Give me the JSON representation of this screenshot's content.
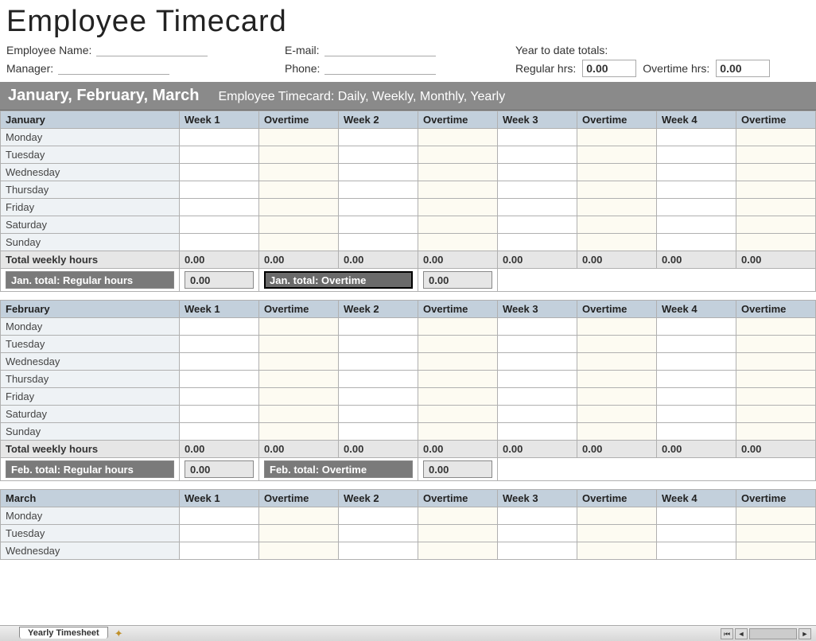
{
  "title": "Employee Timecard",
  "header": {
    "employee_name_label": "Employee Name:",
    "email_label": "E-mail:",
    "manager_label": "Manager:",
    "phone_label": "Phone:",
    "ytd_label": "Year to date totals:",
    "regular_hrs_label": "Regular hrs:",
    "regular_hrs_value": "0.00",
    "overtime_hrs_label": "Overtime hrs:",
    "overtime_hrs_value": "0.00"
  },
  "section": {
    "quarter_title": "January, February, March",
    "subtitle": "Employee Timecard: Daily, Weekly, Monthly, Yearly"
  },
  "columns": [
    "Week 1",
    "Overtime",
    "Week 2",
    "Overtime",
    "Week 3",
    "Overtime",
    "Week 4",
    "Overtime"
  ],
  "days": [
    "Monday",
    "Tuesday",
    "Wednesday",
    "Thursday",
    "Friday",
    "Saturday",
    "Sunday"
  ],
  "totals_label": "Total weekly hours",
  "totals_values": [
    "0.00",
    "0.00",
    "0.00",
    "0.00",
    "0.00",
    "0.00",
    "0.00",
    "0.00"
  ],
  "months": {
    "january": {
      "name": "January",
      "mt_reg_label": "Jan. total: Regular hours",
      "mt_reg_value": "0.00",
      "mt_ot_label": "Jan. total: Overtime",
      "mt_ot_value": "0.00"
    },
    "february": {
      "name": "February",
      "mt_reg_label": "Feb. total: Regular hours",
      "mt_reg_value": "0.00",
      "mt_ot_label": "Feb.  total: Overtime",
      "mt_ot_value": "0.00"
    },
    "march": {
      "name": "March",
      "days_visible": [
        "Monday",
        "Tuesday",
        "Wednesday"
      ]
    }
  },
  "tab": {
    "name": "Yearly Timesheet"
  },
  "colors": {
    "header_blue": "#c3d0dc",
    "day_col": "#eef2f5",
    "ot_col": "#fdfbf2",
    "totals_bg": "#e6e6e6",
    "dark_bar": "#8a8a8a",
    "mt_dark": "#7a7a7a",
    "border": "#b0b0b0"
  }
}
